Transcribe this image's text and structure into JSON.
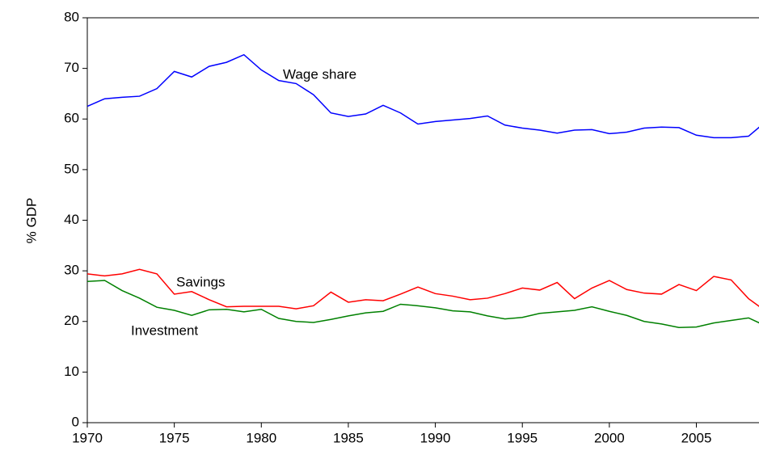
{
  "chart_data": {
    "type": "line",
    "y_label": "% GDP",
    "x": [
      1970,
      1971,
      1972,
      1973,
      1974,
      1975,
      1976,
      1977,
      1978,
      1979,
      1980,
      1981,
      1982,
      1983,
      1984,
      1985,
      1986,
      1987,
      1988,
      1989,
      1990,
      1991,
      1992,
      1993,
      1994,
      1995,
      1996,
      1997,
      1998,
      1999,
      2000,
      2001,
      2002,
      2003,
      2004,
      2005,
      2006,
      2007,
      2008,
      2009
    ],
    "series": [
      {
        "name": "Wage share",
        "color": "#0000ff",
        "values": [
          62.5,
          64,
          64.3,
          64.5,
          66,
          69.4,
          68.3,
          70.4,
          71.2,
          72.7,
          69.7,
          67.6,
          67,
          64.8,
          61.2,
          60.5,
          61,
          62.7,
          61.2,
          59,
          59.5,
          59.8,
          60.1,
          60.6,
          58.8,
          58.2,
          57.8,
          57.2,
          57.8,
          57.9,
          57.1,
          57.4,
          58.2,
          58.4,
          58.3,
          56.8,
          56.3,
          56.3,
          56.6,
          59.5
        ]
      },
      {
        "name": "Savings",
        "color": "#ff0000",
        "values": [
          29.4,
          29,
          29.4,
          30.3,
          29.4,
          25.4,
          25.9,
          24.3,
          22.9,
          23,
          23,
          23,
          22.5,
          23.1,
          25.8,
          23.8,
          24.3,
          24.1,
          25.4,
          26.8,
          25.5,
          25,
          24.3,
          24.6,
          25.5,
          26.6,
          26.2,
          27.7,
          24.5,
          26.6,
          28.1,
          26.3,
          25.6,
          25.4,
          27.3,
          26.1,
          28.9,
          28.2,
          24.5,
          22
        ]
      },
      {
        "name": "Investment",
        "color": "#008000",
        "values": [
          27.9,
          28.1,
          26.1,
          24.6,
          22.8,
          22.2,
          21.2,
          22.3,
          22.4,
          21.9,
          22.4,
          20.6,
          20,
          19.8,
          20.4,
          21.1,
          21.7,
          22,
          23.4,
          23.1,
          22.7,
          22.1,
          21.9,
          21.1,
          20.5,
          20.8,
          21.6,
          21.9,
          22.2,
          22.9,
          22,
          21.2,
          20,
          19.5,
          18.8,
          18.9,
          19.7,
          20.2,
          20.7,
          19.1
        ]
      }
    ],
    "xlim": [
      1970,
      2008.6
    ],
    "ylim": [
      0,
      80
    ],
    "xticks": [
      1970,
      1975,
      1980,
      1985,
      1990,
      1995,
      2000,
      2005
    ],
    "yticks": [
      0,
      10,
      20,
      30,
      40,
      50,
      60,
      70,
      80
    ],
    "grid": false
  }
}
